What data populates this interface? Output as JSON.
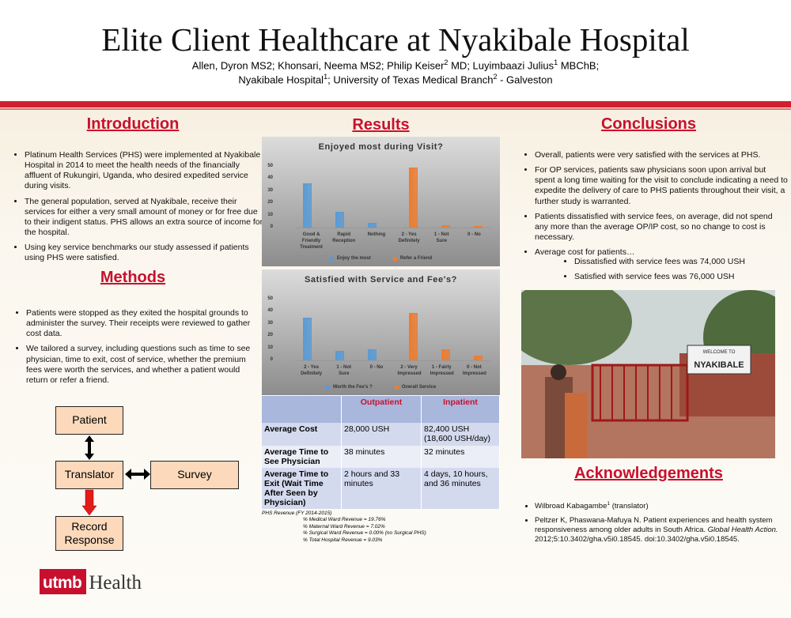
{
  "header": {
    "title": "Elite Client Healthcare at Nyakibale Hospital",
    "authors": [
      "Allen, Dyron MS2; Khonsari, Neema MS2; Philip Keiser",
      {
        "sup": "2"
      },
      " MD; Luyimbaazi Julius",
      {
        "sup": "1"
      },
      " MBChB;"
    ],
    "affiliations": [
      "Nyakibale Hospital",
      {
        "sup": "1"
      },
      "; University of Texas Medical Branch",
      {
        "sup": "2"
      },
      " - Galveston"
    ]
  },
  "introduction": {
    "heading": "Introduction",
    "bullets": [
      "Platinum Health Services (PHS) were implemented at Nyakibale Hospital in 2014 to meet the health needs of the financially affluent of Rukungiri, Uganda, who desired expedited service during visits.",
      "The general population, served at Nyakibale, receive their services for either a very small amount of money or for free due to their indigent status. PHS allows an extra source of income for the hospital.",
      "Using key service benchmarks our study assessed if patients using PHS were satisfied."
    ]
  },
  "methods": {
    "heading": "Methods",
    "bullets": [
      "Patients were stopped as they exited the hospital grounds to administer the survey. Their receipts were reviewed to gather cost data.",
      "We tailored a survey, including questions such as time to see physician, time to exit, cost of service, whether the premium fees were worth the services, and whether a patient would return or refer a friend."
    ]
  },
  "flowchart": {
    "nodes": [
      "Patient",
      "Translator",
      "Survey",
      "Record Response"
    ]
  },
  "logo": {
    "mark": "utmb",
    "text": "Health"
  },
  "results": {
    "heading": "Results"
  },
  "chart_data": [
    {
      "type": "bar",
      "title": "Enjoyed most during Visit?",
      "categories": [
        "Good & Friendly Treatment",
        "Rapid Reception",
        "Nothing",
        "2 - Yes Definitely",
        "1 - Not Sure",
        "0 - No"
      ],
      "series": [
        {
          "name": "Enjoy the most",
          "color": "#5b9bd5",
          "values": [
            36,
            13,
            4,
            null,
            null,
            null
          ]
        },
        {
          "name": "Refer a Friend",
          "color": "#ed7d31",
          "values": [
            null,
            null,
            null,
            49,
            2,
            1
          ]
        }
      ],
      "ylim": [
        0,
        55
      ],
      "yticks": [
        0,
        10,
        20,
        30,
        40,
        50
      ]
    },
    {
      "type": "bar",
      "title": "Satisfied with Service and Fee's?",
      "categories": [
        "2 - Yes Definitely",
        "1 - Not Sure",
        "0 - No",
        "2 - Very Impressed",
        "1 - Fairly Impressed",
        "0 - Not Impressed"
      ],
      "series": [
        {
          "name": "Worth the Fee's ?",
          "color": "#5b9bd5",
          "values": [
            35,
            8,
            9,
            null,
            null,
            null
          ]
        },
        {
          "name": "Overall Service",
          "color": "#ed7d31",
          "values": [
            null,
            null,
            null,
            39,
            9,
            4
          ]
        }
      ],
      "ylim": [
        0,
        55
      ],
      "yticks": [
        0,
        10,
        20,
        30,
        40,
        50
      ]
    }
  ],
  "table": {
    "columns": [
      "Outpatient",
      "Inpatient"
    ],
    "rows": [
      [
        "Average Cost",
        "28,000 USH",
        "82,400 USH (18,600 USH/day)"
      ],
      [
        "Average Time to See Physician",
        "38 minutes",
        "32 minutes"
      ],
      [
        "Average Time to Exit (Wait Time After Seen by Physician)",
        "2 hours and 33 minutes",
        "4 days, 10 hours, and 36 minutes"
      ]
    ]
  },
  "revenue_notes": {
    "title": "PHS Revenue (FY 2014-2015)",
    "lines": [
      "% Medical Ward Revenue = 19.76%",
      "% Maternal Ward Revenue = 7.02%",
      "% Surgical Ward Revenue = 0.00% (no Surgical PHS)",
      "% Total Hospital Revenue = 9.03%"
    ]
  },
  "conclusions": {
    "heading": "Conclusions",
    "bullets": [
      "Overall, patients were very satisfied with the services at PHS.",
      "For OP services, patients saw physicians soon upon arrival but spent a long time waiting for the visit to conclude indicating a need to expedite the delivery of care to PHS patients throughout their visit, a further study is warranted.",
      "Patients dissatisfied with service fees, on average, did not spend any more than the average OP/IP cost, so no change to cost is necessary.",
      "Average cost for patients…"
    ],
    "sub_bullets": [
      "Dissatisfied with service fees was 74,000 USH",
      "Satisfied with service fees was 76,000 USH"
    ]
  },
  "photo": {
    "sign": [
      "WELCOME TO",
      "NYAKIBALE"
    ]
  },
  "acknowledgements": {
    "heading": "Acknowledgements",
    "items": [
      [
        "Wilbroad Kabagambe",
        {
          "sup": "1"
        },
        " (translator)"
      ],
      [
        "Peltzer K, Phaswana-Mafuya N. Patient experiences and health system responsiveness among older adults in South Africa. ",
        {
          "i": "Global Health Action."
        },
        " 2012;5:10.3402/gha.v5i0.18545. doi:10.3402/gha.v5i0.18545."
      ]
    ]
  }
}
